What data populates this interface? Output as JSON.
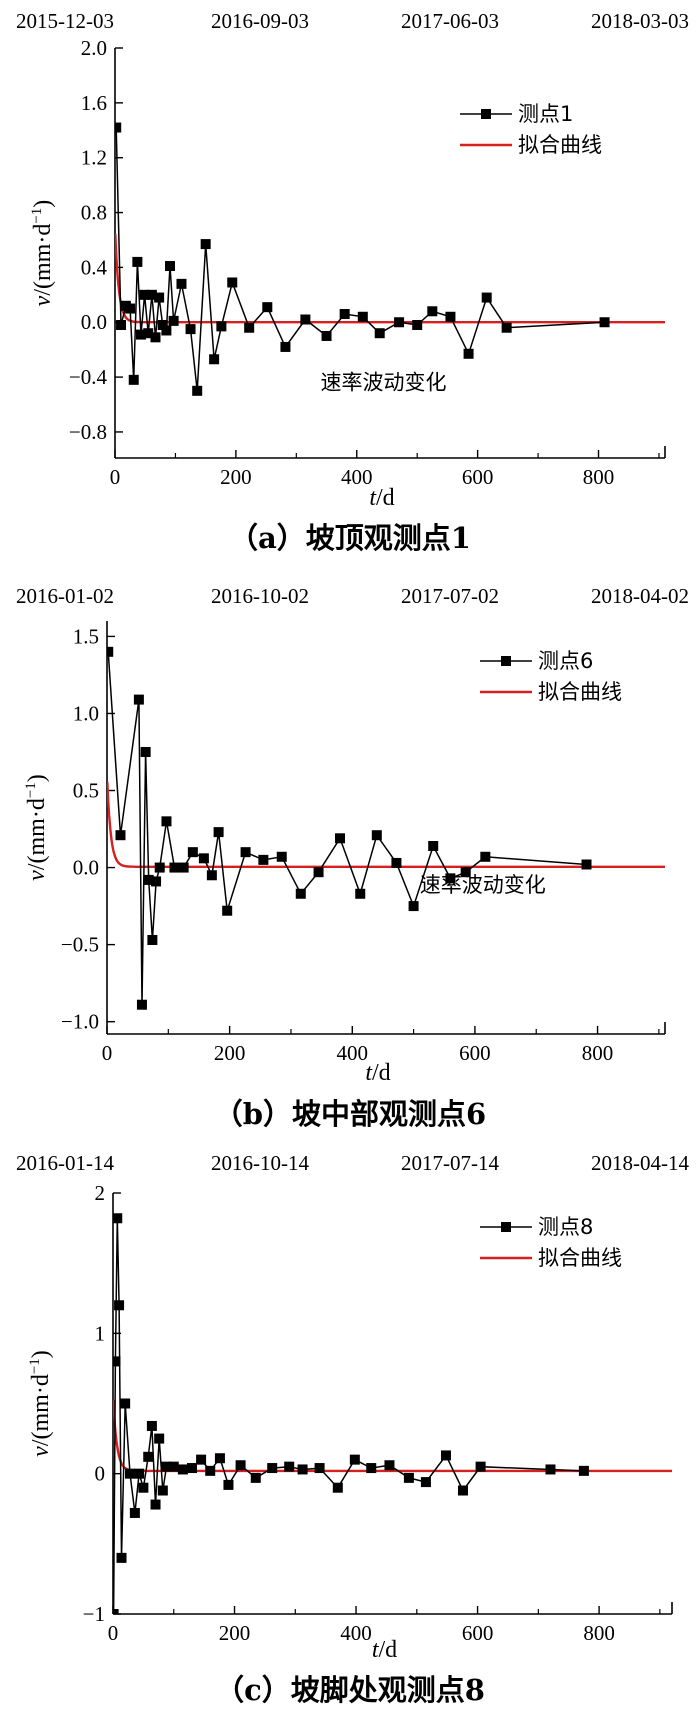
{
  "chart_data": [
    {
      "type": "line",
      "caption": "（a）坡顶观测点1",
      "top_dates": [
        "2015-12-03",
        "2016-09-03",
        "2017-06-03",
        "2018-03-03"
      ],
      "xlabel_var": "t",
      "xlabel_unit": "/d",
      "ylabel_var": "v",
      "ylabel_unit": "/(mm·d",
      "ylabel_sup": "−1",
      "ylabel_close": ")",
      "xlim": [
        0,
        910
      ],
      "ylim": [
        -0.99,
        2.0
      ],
      "xticks": [
        0,
        200,
        400,
        600,
        800
      ],
      "xtick_labels": [
        "0",
        "200",
        "400",
        "600",
        "800"
      ],
      "yticks": [
        -0.8,
        -0.4,
        0.0,
        0.4,
        0.8,
        1.2,
        1.6,
        2.0
      ],
      "ytick_labels": [
        "−0.8",
        "−0.4",
        "0.0",
        "0.4",
        "0.8",
        "1.2",
        "1.6",
        "2.0"
      ],
      "legend_position": "top-right",
      "annotation": "速率波动变化",
      "annotation_at": [
        340,
        -0.49
      ],
      "series": [
        {
          "name": "测点1",
          "color": "#000000",
          "x": [
            2,
            10,
            18,
            25,
            31,
            37,
            43,
            49,
            55,
            61,
            67,
            73,
            79,
            85,
            91,
            97,
            110,
            125,
            136,
            150,
            164,
            176,
            194,
            222,
            252,
            282,
            315,
            350,
            380,
            410,
            438,
            470,
            500,
            525,
            555,
            585,
            615,
            648,
            810
          ],
          "y": [
            1.42,
            -0.02,
            0.12,
            0.1,
            -0.42,
            0.44,
            -0.09,
            0.2,
            -0.08,
            0.2,
            -0.11,
            0.18,
            -0.02,
            -0.06,
            0.41,
            0.01,
            0.28,
            -0.05,
            -0.5,
            0.57,
            -0.27,
            -0.03,
            0.29,
            -0.04,
            0.11,
            -0.18,
            0.02,
            -0.1,
            0.06,
            0.04,
            -0.08,
            0.0,
            -0.02,
            0.08,
            0.04,
            -0.23,
            0.18,
            -0.04,
            0.0
          ]
        },
        {
          "name": "拟合曲线",
          "color": "#d62020",
          "fit": {
            "a": 0.7,
            "tau": 6,
            "b": 0.0
          }
        }
      ]
    },
    {
      "type": "line",
      "caption": "（b）坡中部观测点6",
      "top_dates": [
        "2016-01-02",
        "2016-10-02",
        "2017-07-02",
        "2018-04-02"
      ],
      "xlabel_var": "t",
      "xlabel_unit": "/d",
      "ylabel_var": "v",
      "ylabel_unit": "/(mm·d",
      "ylabel_sup": "−1",
      "ylabel_close": ")",
      "xlim": [
        0,
        910
      ],
      "ylim": [
        -1.08,
        1.6
      ],
      "xticks": [
        0,
        200,
        400,
        600,
        800
      ],
      "xtick_labels": [
        "0",
        "200",
        "400",
        "600",
        "800"
      ],
      "yticks": [
        -1.0,
        -0.5,
        0.0,
        0.5,
        1.0,
        1.5
      ],
      "ytick_labels": [
        "−1.0",
        "−0.5",
        "0.0",
        "0.5",
        "1.0",
        "1.5"
      ],
      "legend_position": "top-right",
      "annotation": "速率波动变化",
      "annotation_at": [
        510,
        -0.16
      ],
      "series": [
        {
          "name": "测点6",
          "color": "#000000",
          "x": [
            2,
            22,
            52,
            57,
            63,
            68,
            74,
            80,
            86,
            97,
            110,
            125,
            140,
            158,
            171,
            182,
            196,
            226,
            255,
            285,
            316,
            345,
            380,
            413,
            440,
            472,
            500,
            532,
            560,
            585,
            617,
            782
          ],
          "y": [
            1.4,
            0.21,
            1.09,
            -0.89,
            0.75,
            -0.08,
            -0.47,
            -0.09,
            0.0,
            0.3,
            0.0,
            0.0,
            0.1,
            0.06,
            -0.05,
            0.23,
            -0.28,
            0.1,
            0.05,
            0.07,
            -0.17,
            -0.03,
            0.19,
            -0.17,
            0.21,
            0.03,
            -0.25,
            0.14,
            -0.07,
            -0.03,
            0.07,
            0.02
          ]
        },
        {
          "name": "拟合曲线",
          "color": "#d62020",
          "fit": {
            "a": 0.6,
            "tau": 6,
            "b": 0.005
          }
        }
      ]
    },
    {
      "type": "line",
      "caption": "（c）坡脚处观测点8",
      "top_dates": [
        "2016-01-14",
        "2016-10-14",
        "2017-07-14",
        "2018-04-14"
      ],
      "xlabel_var": "t",
      "xlabel_unit": "/d",
      "ylabel_var": "v",
      "ylabel_unit": "/(mm·d",
      "ylabel_sup": "−1",
      "ylabel_close": ")",
      "xlim": [
        0,
        920
      ],
      "ylim": [
        -1.0,
        2.0
      ],
      "xticks": [
        0,
        200,
        400,
        600,
        800
      ],
      "xtick_labels": [
        "0",
        "200",
        "400",
        "600",
        "800"
      ],
      "yticks": [
        -1,
        0,
        1,
        2
      ],
      "ytick_labels": [
        "−1",
        "0",
        "1",
        "2"
      ],
      "legend_position": "top-right",
      "series": [
        {
          "name": "测点8",
          "color": "#000000",
          "x": [
            1,
            4,
            7,
            10,
            14,
            20,
            28,
            36,
            43,
            50,
            58,
            64,
            70,
            76,
            82,
            88,
            100,
            115,
            130,
            145,
            160,
            176,
            190,
            210,
            235,
            262,
            290,
            312,
            340,
            370,
            398,
            425,
            455,
            487,
            515,
            548,
            576,
            605,
            720,
            775
          ],
          "y": [
            -1.0,
            0.8,
            1.82,
            1.2,
            -0.6,
            0.5,
            0.0,
            -0.28,
            0.0,
            -0.1,
            0.12,
            0.34,
            -0.22,
            0.25,
            -0.12,
            0.05,
            0.05,
            0.03,
            0.04,
            0.1,
            0.02,
            0.11,
            -0.08,
            0.06,
            -0.03,
            0.04,
            0.05,
            0.03,
            0.04,
            -0.1,
            0.1,
            0.04,
            0.06,
            -0.03,
            -0.06,
            0.13,
            -0.12,
            0.05,
            0.03,
            0.02
          ]
        },
        {
          "name": "拟合曲线",
          "color": "#d62020",
          "fit": {
            "a": 0.55,
            "tau": 6,
            "b": 0.02
          }
        }
      ]
    }
  ]
}
